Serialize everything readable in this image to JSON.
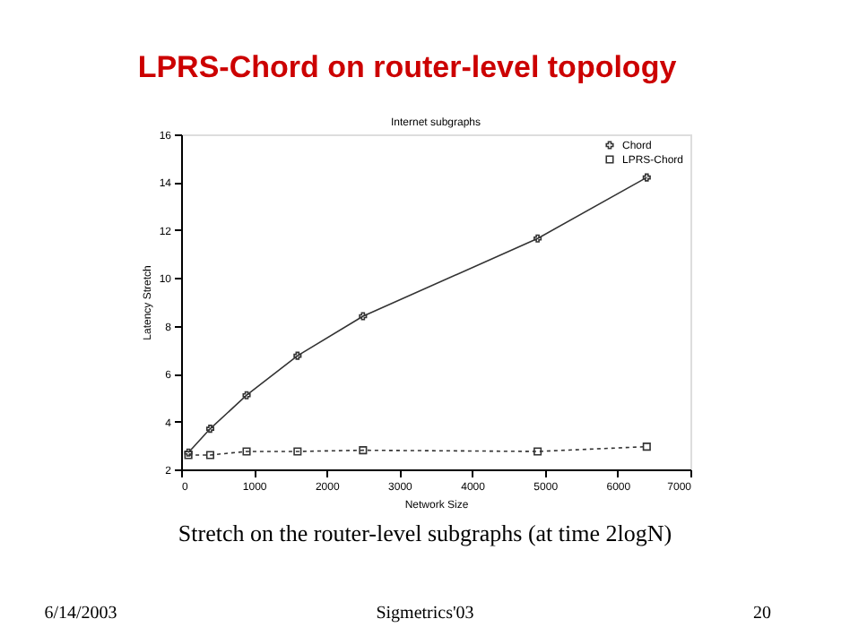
{
  "chart_data": {
    "type": "line",
    "title": "LPRS-Chord on router-level topology",
    "subtitle": "Internet subgraphs",
    "xlabel": "Network Size",
    "ylabel": "Latency Stretch",
    "x": [
      100,
      400,
      900,
      1600,
      2500,
      4900,
      6400
    ],
    "series": [
      {
        "name": "Chord",
        "color": "#333333",
        "marker": "cross",
        "line_style": "solid",
        "values": [
          2.7,
          3.7,
          5.1,
          6.75,
          8.4,
          11.65,
          14.2
        ]
      },
      {
        "name": "LPRS-Chord",
        "color": "#333333",
        "marker": "square",
        "line_style": "dotted",
        "values": [
          2.6,
          2.6,
          2.75,
          2.75,
          2.8,
          2.75,
          2.95
        ]
      }
    ],
    "xlim": [
      0,
      7000
    ],
    "xticks": [
      0,
      1000,
      2000,
      3000,
      4000,
      5000,
      6000,
      7000
    ],
    "ylim": [
      2,
      16
    ],
    "yticks": [
      2,
      4,
      6,
      8,
      10,
      12,
      14,
      16
    ],
    "grid": false,
    "legend": "top right",
    "annotations": [
      "Stretch on the router-level subgraphs (at time 2logN)",
      "6/14/2003",
      "Sigmetrics'03",
      "20"
    ]
  }
}
